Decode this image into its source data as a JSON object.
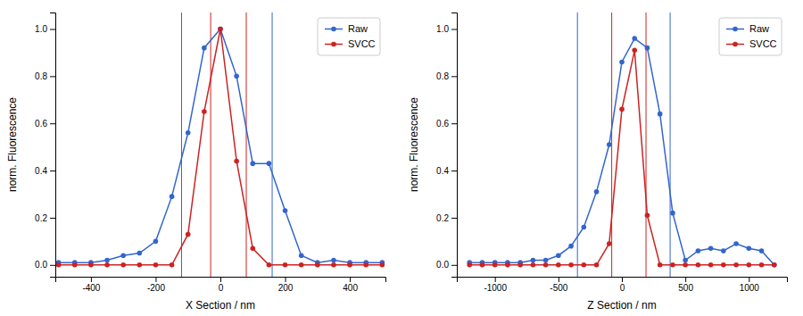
{
  "chart_data": [
    {
      "type": "line",
      "x_label": "X Section / nm",
      "y_label": "norm. Fluorescence",
      "xlim": [
        -510,
        510
      ],
      "ylim": [
        -0.05,
        1.07
      ],
      "xticks": [
        -400,
        -200,
        0,
        200,
        400
      ],
      "yticks": [
        {
          "value": 0,
          "label": "0.0"
        },
        0.2,
        0.4,
        0.6,
        0.8,
        {
          "value": 1,
          "label": "1.0"
        }
      ],
      "legend": "upper right",
      "x": [
        -500,
        -450,
        -400,
        -350,
        -300,
        -250,
        -200,
        -150,
        -100,
        -50,
        0,
        50,
        100,
        150,
        200,
        250,
        300,
        350,
        400,
        450,
        500
      ],
      "series": [
        {
          "name": "Raw",
          "color": "#3366cc",
          "marker": "o",
          "values": [
            0.01,
            0.01,
            0.01,
            0.02,
            0.04,
            0.05,
            0.1,
            0.29,
            0.56,
            0.92,
            1.0,
            0.8,
            0.43,
            0.43,
            0.23,
            0.04,
            0.01,
            0.02,
            0.01,
            0.01,
            0.01
          ],
          "vlines": [
            -120,
            160
          ]
        },
        {
          "name": "SVCC",
          "color": "#cc2222",
          "marker": "o",
          "values": [
            0.0,
            0.0,
            0.0,
            0.0,
            0.0,
            0.0,
            0.0,
            0.0,
            0.13,
            0.65,
            1.0,
            0.44,
            0.07,
            0.0,
            0.0,
            0.0,
            0.0,
            0.0,
            0.0,
            0.0,
            0.0
          ],
          "vlines": [
            -30,
            80
          ]
        }
      ]
    },
    {
      "type": "line",
      "x_label": "Z Section / nm",
      "y_label": "norm. Fluorescence",
      "xlim": [
        -1300,
        1300
      ],
      "ylim": [
        -0.05,
        1.07
      ],
      "xticks": [
        -1000,
        -500,
        0,
        500,
        1000
      ],
      "yticks": [
        {
          "value": 0,
          "label": "0.0"
        },
        0.2,
        0.4,
        0.6,
        0.8,
        {
          "value": 1,
          "label": "1.0"
        }
      ],
      "legend": "upper right",
      "x": [
        -1200,
        -1100,
        -1000,
        -900,
        -800,
        -700,
        -600,
        -500,
        -400,
        -300,
        -200,
        -100,
        0,
        100,
        200,
        300,
        400,
        500,
        600,
        700,
        800,
        900,
        1000,
        1100,
        1200
      ],
      "series": [
        {
          "name": "Raw",
          "color": "#3366cc",
          "marker": "o",
          "values": [
            0.01,
            0.01,
            0.01,
            0.01,
            0.01,
            0.02,
            0.02,
            0.04,
            0.08,
            0.16,
            0.31,
            0.51,
            0.86,
            0.96,
            0.92,
            0.64,
            0.22,
            0.02,
            0.06,
            0.07,
            0.06,
            0.09,
            0.07,
            0.06,
            0.0
          ],
          "vlines": [
            -350,
            380
          ]
        },
        {
          "name": "SVCC",
          "color": "#cc2222",
          "marker": "o",
          "values": [
            0.0,
            0.0,
            0.0,
            0.0,
            0.0,
            0.0,
            0.0,
            0.0,
            0.0,
            0.0,
            0.0,
            0.09,
            0.66,
            0.91,
            0.21,
            0.0,
            0.0,
            0.0,
            0.0,
            0.0,
            0.0,
            0.0,
            0.0,
            0.0,
            0.0
          ],
          "vlines": [
            -80,
            190
          ]
        }
      ]
    }
  ]
}
